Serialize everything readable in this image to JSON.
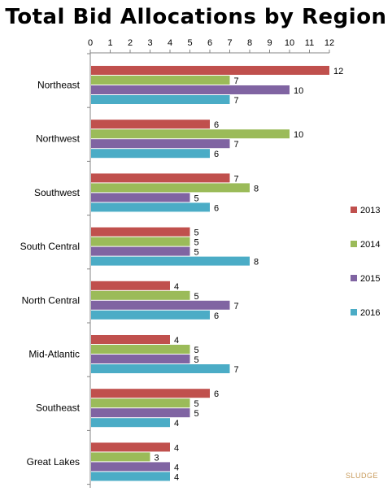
{
  "chart_data": {
    "type": "bar",
    "orientation": "horizontal",
    "title": "Total Bid Allocations by Region",
    "categories": [
      "Northeast",
      "Northwest",
      "Southwest",
      "South Central",
      "North Central",
      "Mid-Atlantic",
      "Southeast",
      "Great Lakes"
    ],
    "series": [
      {
        "name": "2013",
        "color": "#c0504d",
        "values": [
          12,
          6,
          7,
          5,
          4,
          4,
          6,
          4
        ]
      },
      {
        "name": "2014",
        "color": "#9bbb59",
        "values": [
          7,
          10,
          8,
          5,
          5,
          5,
          5,
          3
        ]
      },
      {
        "name": "2015",
        "color": "#8064a2",
        "values": [
          10,
          7,
          5,
          5,
          7,
          5,
          5,
          4
        ]
      },
      {
        "name": "2016",
        "color": "#4bacc6",
        "values": [
          7,
          6,
          6,
          8,
          6,
          7,
          4,
          4
        ]
      }
    ],
    "xlim": [
      0,
      12
    ],
    "xticks": [
      0,
      1,
      2,
      3,
      4,
      5,
      6,
      7,
      8,
      9,
      10,
      11,
      12
    ],
    "x_axis_position": "top",
    "grid": false,
    "legend_position": "right",
    "data_labels": true
  },
  "watermark": "SLUDGE"
}
